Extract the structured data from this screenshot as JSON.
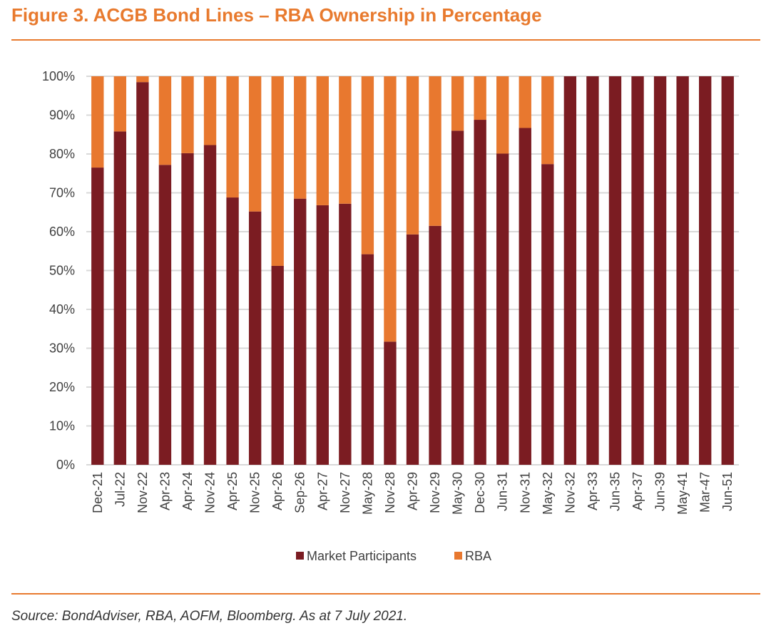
{
  "figure": {
    "title": "Figure 3. ACGB Bond Lines – RBA Ownership in Percentage",
    "source": "Source: BondAdviser, RBA, AOFM, Bloomberg. As at 7 July 2021."
  },
  "colors": {
    "market": "#7b1c22",
    "rba": "#e8782f",
    "accent": "#e87a2e",
    "grid": "#d9d9d9",
    "text": "#404040"
  },
  "chart_data": {
    "type": "bar",
    "stacked": true,
    "title": "",
    "xlabel": "",
    "ylabel": "",
    "ylim": [
      0,
      100
    ],
    "yticks": [
      "0%",
      "10%",
      "20%",
      "30%",
      "40%",
      "50%",
      "60%",
      "70%",
      "80%",
      "90%",
      "100%"
    ],
    "grid": true,
    "legend_position": "bottom",
    "categories": [
      "Dec-21",
      "Jul-22",
      "Nov-22",
      "Apr-23",
      "Apr-24",
      "Nov-24",
      "Apr-25",
      "Nov-25",
      "Apr-26",
      "Sep-26",
      "Apr-27",
      "Nov-27",
      "May-28",
      "Nov-28",
      "Apr-29",
      "Nov-29",
      "May-30",
      "Dec-30",
      "Jun-31",
      "Nov-31",
      "May-32",
      "Nov-32",
      "Apr-33",
      "Jun-35",
      "Apr-37",
      "Jun-39",
      "May-41",
      "Mar-47",
      "Jun-51"
    ],
    "series": [
      {
        "name": "Market Participants",
        "values": [
          76.5,
          85.8,
          98.5,
          77.2,
          80.2,
          82.3,
          68.8,
          65.2,
          51.2,
          68.5,
          66.8,
          67.2,
          54.2,
          31.7,
          59.3,
          61.5,
          86.0,
          88.8,
          80.1,
          86.7,
          77.4,
          100,
          100,
          100,
          100,
          100,
          100,
          100,
          100
        ]
      },
      {
        "name": "RBA",
        "values": [
          23.5,
          14.2,
          1.5,
          22.8,
          19.8,
          17.7,
          31.2,
          34.8,
          48.8,
          31.5,
          33.2,
          32.8,
          45.8,
          68.3,
          40.7,
          38.5,
          14.0,
          11.2,
          19.9,
          13.3,
          22.6,
          0,
          0,
          0,
          0,
          0,
          0,
          0,
          0
        ]
      }
    ]
  }
}
